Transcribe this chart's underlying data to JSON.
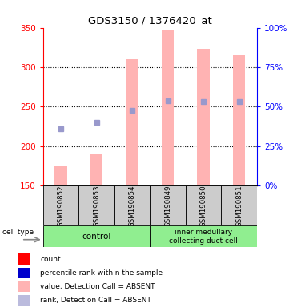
{
  "title": "GDS3150 / 1376420_at",
  "samples": [
    "GSM190852",
    "GSM190853",
    "GSM190854",
    "GSM190849",
    "GSM190850",
    "GSM190851"
  ],
  "pink_bar_values": [
    175,
    190,
    310,
    347,
    323,
    315
  ],
  "blue_square_values": [
    222,
    230,
    245,
    258,
    257,
    257
  ],
  "ylim_left": [
    150,
    350
  ],
  "ylim_right": [
    0,
    100
  ],
  "yticks_left": [
    150,
    200,
    250,
    300,
    350
  ],
  "yticks_right": [
    0,
    25,
    50,
    75,
    100
  ],
  "pink_bar_color": "#FFB3B3",
  "blue_square_color": "#9999CC",
  "red_square_color": "#FF0000",
  "left_axis_color": "#FF0000",
  "right_axis_color": "#0000FF",
  "sample_box_color": "#CCCCCC",
  "group_box_color": "#90EE90",
  "legend_colors": [
    "#FF0000",
    "#0000CC",
    "#FFB3B3",
    "#BBBBDD"
  ],
  "legend_labels": [
    "count",
    "percentile rank within the sample",
    "value, Detection Call = ABSENT",
    "rank, Detection Call = ABSENT"
  ]
}
